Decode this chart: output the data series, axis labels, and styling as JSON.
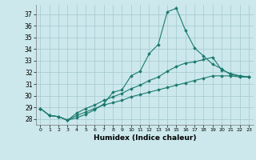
{
  "title": "",
  "xlabel": "Humidex (Indice chaleur)",
  "ylabel": "",
  "bg_color": "#cce8ec",
  "line_color": "#1a7a6e",
  "grid_color": "#aacdd4",
  "xlim": [
    -0.5,
    23.5
  ],
  "ylim": [
    27.5,
    37.8
  ],
  "yticks": [
    28,
    29,
    30,
    31,
    32,
    33,
    34,
    35,
    36,
    37
  ],
  "xticks": [
    0,
    1,
    2,
    3,
    4,
    5,
    6,
    7,
    8,
    9,
    10,
    11,
    12,
    13,
    14,
    15,
    16,
    17,
    18,
    19,
    20,
    21,
    22,
    23
  ],
  "series": [
    [
      28.9,
      28.3,
      28.2,
      27.9,
      28.1,
      28.4,
      28.8,
      29.3,
      30.3,
      30.5,
      31.7,
      32.1,
      33.6,
      34.4,
      37.2,
      37.5,
      35.6,
      34.1,
      33.4,
      32.7,
      32.3,
      31.8,
      31.7,
      31.6
    ],
    [
      28.9,
      28.3,
      28.2,
      27.9,
      28.5,
      28.9,
      29.2,
      29.6,
      29.9,
      30.2,
      30.6,
      30.9,
      31.3,
      31.6,
      32.1,
      32.5,
      32.8,
      32.9,
      33.1,
      33.3,
      32.2,
      31.9,
      31.7,
      31.6
    ],
    [
      28.9,
      28.3,
      28.2,
      27.9,
      28.3,
      28.6,
      28.9,
      29.2,
      29.4,
      29.6,
      29.9,
      30.1,
      30.3,
      30.5,
      30.7,
      30.9,
      31.1,
      31.3,
      31.5,
      31.7,
      31.7,
      31.7,
      31.6,
      31.6
    ]
  ]
}
